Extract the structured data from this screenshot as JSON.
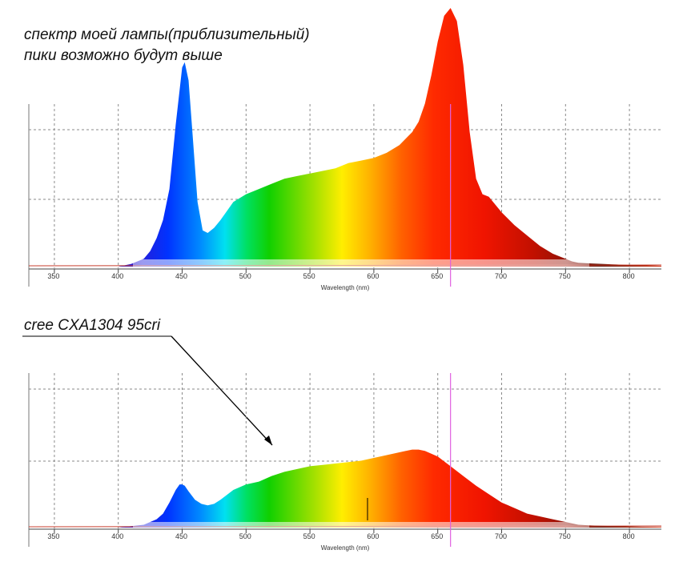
{
  "chart_data": [
    {
      "type": "area",
      "annotation": [
        "спектр моей лампы(приблизительный)",
        "пики возможно будут выше"
      ],
      "xlabel": "Wavelength (nm)",
      "xlim": [
        330,
        825
      ],
      "ylim": [
        0,
        1.0
      ],
      "x_ticks": [
        350,
        400,
        450,
        500,
        550,
        600,
        650,
        700,
        750,
        800
      ],
      "tick_labels": [
        "350",
        "400",
        "450",
        "500",
        "550",
        "600",
        "650",
        "700",
        "750",
        "800"
      ],
      "grid": true,
      "marker_line_nm": 660,
      "x": [
        330,
        400,
        410,
        420,
        425,
        430,
        435,
        440,
        445,
        450,
        452,
        455,
        458,
        462,
        466,
        470,
        475,
        480,
        490,
        500,
        510,
        520,
        530,
        540,
        550,
        560,
        570,
        580,
        590,
        600,
        610,
        620,
        630,
        635,
        640,
        645,
        650,
        655,
        660,
        665,
        670,
        675,
        680,
        685,
        690,
        700,
        710,
        720,
        730,
        740,
        750,
        755,
        760,
        770,
        780,
        790,
        800,
        810,
        820,
        825
      ],
      "values": [
        0.0,
        0.0,
        0.01,
        0.03,
        0.06,
        0.11,
        0.18,
        0.3,
        0.55,
        0.77,
        0.79,
        0.72,
        0.52,
        0.25,
        0.14,
        0.13,
        0.15,
        0.18,
        0.25,
        0.28,
        0.3,
        0.32,
        0.34,
        0.35,
        0.36,
        0.37,
        0.38,
        0.4,
        0.41,
        0.42,
        0.44,
        0.47,
        0.52,
        0.56,
        0.63,
        0.74,
        0.87,
        0.97,
        1.0,
        0.95,
        0.78,
        0.52,
        0.34,
        0.28,
        0.27,
        0.21,
        0.16,
        0.12,
        0.08,
        0.05,
        0.03,
        0.02,
        0.015,
        0.012,
        0.01,
        0.008,
        0.006,
        0.005,
        0.004,
        0.003
      ]
    },
    {
      "type": "area",
      "annotation": [
        "cree CXA1304 95cri"
      ],
      "xlabel": "Wavelength (nm)",
      "xlim": [
        330,
        825
      ],
      "ylim": [
        0,
        1.0
      ],
      "x_ticks": [
        350,
        400,
        450,
        500,
        550,
        600,
        650,
        700,
        750,
        800
      ],
      "tick_labels": [
        "350",
        "400",
        "450",
        "500",
        "550",
        "600",
        "650",
        "700",
        "750",
        "800"
      ],
      "grid": true,
      "marker_line_nm": 660,
      "x": [
        330,
        400,
        410,
        420,
        430,
        435,
        440,
        445,
        448,
        450,
        452,
        455,
        460,
        465,
        470,
        475,
        480,
        490,
        500,
        510,
        520,
        530,
        540,
        550,
        560,
        570,
        580,
        590,
        600,
        610,
        620,
        625,
        630,
        635,
        640,
        645,
        650,
        660,
        670,
        680,
        690,
        700,
        710,
        720,
        730,
        740,
        750,
        760,
        770,
        780,
        790,
        800,
        810,
        820,
        825
      ],
      "values": [
        0.0,
        0.0,
        0.01,
        0.02,
        0.06,
        0.1,
        0.18,
        0.27,
        0.31,
        0.31,
        0.3,
        0.26,
        0.2,
        0.17,
        0.16,
        0.17,
        0.2,
        0.27,
        0.31,
        0.33,
        0.37,
        0.4,
        0.42,
        0.44,
        0.45,
        0.46,
        0.47,
        0.48,
        0.5,
        0.52,
        0.54,
        0.55,
        0.56,
        0.56,
        0.55,
        0.53,
        0.51,
        0.44,
        0.37,
        0.3,
        0.24,
        0.18,
        0.14,
        0.1,
        0.08,
        0.06,
        0.04,
        0.02,
        0.015,
        0.012,
        0.01,
        0.008,
        0.006,
        0.005,
        0.004
      ]
    }
  ]
}
